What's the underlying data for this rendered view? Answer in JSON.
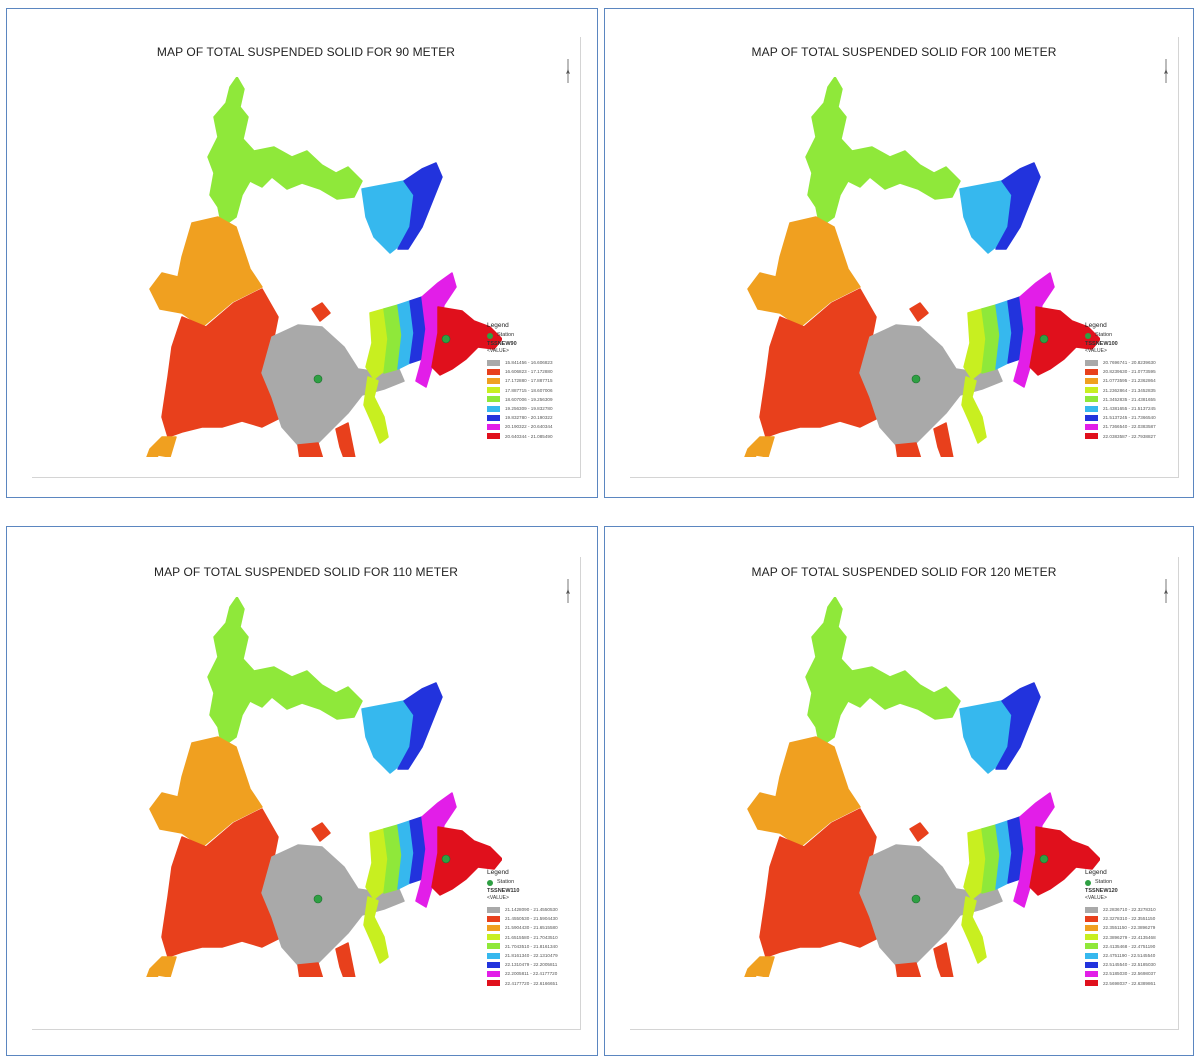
{
  "panels": [
    {
      "title": "MAP OF TOTAL SUSPENDED SOLID FOR 90 METER",
      "legend": {
        "title": "Legend",
        "station_label": "Station",
        "layer_name": "TSSNEW90",
        "value_header": "<VALUE>",
        "classes": [
          {
            "range": "15.841456 - 16.606823",
            "color": "#a9a9a9"
          },
          {
            "range": "16.606823 - 17.172880",
            "color": "#e8401c"
          },
          {
            "range": "17.172880 - 17.887715",
            "color": "#f0a020"
          },
          {
            "range": "17.887715 - 18.607006",
            "color": "#c8ef20"
          },
          {
            "range": "18.607006 - 19.256309",
            "color": "#8fe83a"
          },
          {
            "range": "19.256309 - 19.832780",
            "color": "#36b8ee"
          },
          {
            "range": "19.832780 - 20.190322",
            "color": "#2233dd"
          },
          {
            "range": "20.190322 - 20.640344",
            "color": "#e21ee8"
          },
          {
            "range": "20.640344 - 21.085490",
            "color": "#e0101c"
          }
        ]
      }
    },
    {
      "title": "MAP OF TOTAL SUSPENDED SOLID FOR 100 METER",
      "legend": {
        "title": "Legend",
        "station_label": "Station",
        "layer_name": "TSSNEW100",
        "value_header": "<VALUE>",
        "classes": [
          {
            "range": "20.7696741 - 20.8239630",
            "color": "#a9a9a9"
          },
          {
            "range": "20.8239630 - 21.0773595",
            "color": "#e8401c"
          },
          {
            "range": "21.0773595 - 21.2362864",
            "color": "#f0a020"
          },
          {
            "range": "21.2362864 - 21.3452835",
            "color": "#c8ef20"
          },
          {
            "range": "21.3452835 - 21.4381655",
            "color": "#8fe83a"
          },
          {
            "range": "21.4381655 - 21.5137245",
            "color": "#36b8ee"
          },
          {
            "range": "21.5137245 - 21.7366540",
            "color": "#2233dd"
          },
          {
            "range": "21.7366540 - 22.0383587",
            "color": "#e21ee8"
          },
          {
            "range": "22.0383587 - 22.7938827",
            "color": "#e0101c"
          }
        ]
      }
    },
    {
      "title": "MAP OF TOTAL SUSPENDED SOLID FOR 110 METER",
      "legend": {
        "title": "Legend",
        "station_label": "Station",
        "layer_name": "TSSNEW110",
        "value_header": "<VALUE>",
        "classes": [
          {
            "range": "21.1428090 - 21.4550530",
            "color": "#a9a9a9"
          },
          {
            "range": "21.4550530 - 21.5904430",
            "color": "#e8401c"
          },
          {
            "range": "21.5904430 - 21.6515580",
            "color": "#f0a020"
          },
          {
            "range": "21.6515580 - 21.7043510",
            "color": "#c8ef20"
          },
          {
            "range": "21.7043510 - 21.8161340",
            "color": "#8fe83a"
          },
          {
            "range": "21.8161340 - 22.1310479",
            "color": "#36b8ee"
          },
          {
            "range": "22.1310479 - 22.2005811",
            "color": "#2233dd"
          },
          {
            "range": "22.2005811 - 22.4177720",
            "color": "#e21ee8"
          },
          {
            "range": "22.4177720 - 22.6166651",
            "color": "#e0101c"
          }
        ]
      }
    },
    {
      "title": "MAP OF TOTAL SUSPENDED SOLID FOR 120 METER",
      "legend": {
        "title": "Legend",
        "station_label": "Station",
        "layer_name": "TSSNEW120",
        "value_header": "<VALUE>",
        "classes": [
          {
            "range": "22.2836710 - 22.3278310",
            "color": "#a9a9a9"
          },
          {
            "range": "22.3278310 - 22.3551150",
            "color": "#e8401c"
          },
          {
            "range": "22.3551150 - 22.3896279",
            "color": "#f0a020"
          },
          {
            "range": "22.3896279 - 22.4135468",
            "color": "#c8ef20"
          },
          {
            "range": "22.4135468 - 22.4751190",
            "color": "#8fe83a"
          },
          {
            "range": "22.4751190 - 22.5145540",
            "color": "#36b8ee"
          },
          {
            "range": "22.5145540 - 22.5185030",
            "color": "#2233dd"
          },
          {
            "range": "22.5185030 - 22.5698037",
            "color": "#e21ee8"
          },
          {
            "range": "22.5698037 - 22.6389861",
            "color": "#e0101c"
          }
        ]
      }
    }
  ]
}
